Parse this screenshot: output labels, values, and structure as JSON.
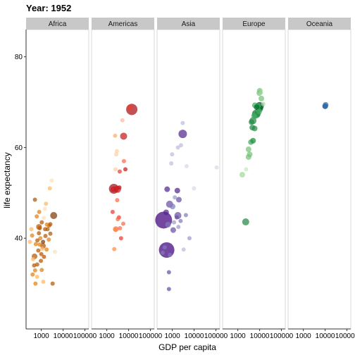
{
  "chart_data": {
    "type": "scatter",
    "title": "Year: 1952",
    "xlabel": "GDP per capita",
    "ylabel": "life expectancy",
    "x_scale": "log10",
    "xlim": [
      200,
      150000
    ],
    "ylim": [
      20,
      86
    ],
    "x_ticks": [
      1000,
      10000,
      100000
    ],
    "x_tick_labels": [
      "1000",
      "10000",
      "100000"
    ],
    "y_ticks": [
      40,
      60,
      80
    ],
    "y_tick_labels": [
      "40",
      "60",
      "80"
    ],
    "grid": false,
    "facets": [
      {
        "name": "Africa",
        "points": [
          {
            "x": 1940,
            "y": 42,
            "size": 3,
            "color": "#b35806"
          },
          {
            "x": 1050,
            "y": 43.5,
            "size": 3,
            "color": "#b35806"
          },
          {
            "x": 780,
            "y": 42.5,
            "size": 4,
            "color": "#b35806"
          },
          {
            "x": 1550,
            "y": 40.5,
            "size": 3,
            "color": "#b35806"
          },
          {
            "x": 620,
            "y": 44.8,
            "size": 3,
            "color": "#e08214"
          },
          {
            "x": 1200,
            "y": 38.3,
            "size": 4,
            "color": "#b35806"
          },
          {
            "x": 3700,
            "y": 45,
            "size": 5,
            "color": "#7f3b08"
          },
          {
            "x": 2300,
            "y": 42.8,
            "size": 3,
            "color": "#b35806"
          },
          {
            "x": 900,
            "y": 40,
            "size": 3,
            "color": "#e08214"
          },
          {
            "x": 1330,
            "y": 35.9,
            "size": 3,
            "color": "#b35806"
          },
          {
            "x": 1750,
            "y": 37.5,
            "size": 3,
            "color": "#e08214"
          },
          {
            "x": 650,
            "y": 34.2,
            "size": 3,
            "color": "#b35806"
          },
          {
            "x": 1050,
            "y": 33,
            "size": 3,
            "color": "#e08214"
          },
          {
            "x": 470,
            "y": 34,
            "size": 3,
            "color": "#b35806"
          },
          {
            "x": 490,
            "y": 36,
            "size": 4,
            "color": "#b35806"
          },
          {
            "x": 780,
            "y": 41.1,
            "size": 3,
            "color": "#b35806"
          },
          {
            "x": 560,
            "y": 38.7,
            "size": 3,
            "color": "#e08214"
          },
          {
            "x": 2600,
            "y": 43.1,
            "size": 3,
            "color": "#b35806"
          },
          {
            "x": 840,
            "y": 38.6,
            "size": 3,
            "color": "#e08214"
          },
          {
            "x": 420,
            "y": 35.4,
            "size": 3,
            "color": "#fdb863"
          },
          {
            "x": 1640,
            "y": 47.6,
            "size": 3,
            "color": "#fdb863"
          },
          {
            "x": 350,
            "y": 42,
            "size": 3,
            "color": "#fdb863"
          },
          {
            "x": 520,
            "y": 32.9,
            "size": 3,
            "color": "#e08214"
          },
          {
            "x": 640,
            "y": 31.5,
            "size": 3,
            "color": "#fdb863"
          },
          {
            "x": 540,
            "y": 30,
            "size": 3,
            "color": "#e08214"
          },
          {
            "x": 1230,
            "y": 30.4,
            "size": 3,
            "color": "#fdb863"
          },
          {
            "x": 2450,
            "y": 51,
            "size": 3,
            "color": "#fdb863"
          },
          {
            "x": 3000,
            "y": 52.7,
            "size": 3,
            "color": "#fee0b6"
          },
          {
            "x": 4200,
            "y": 37,
            "size": 3,
            "color": "#fee0b6"
          },
          {
            "x": 3300,
            "y": 30,
            "size": 3,
            "color": "#b35806"
          },
          {
            "x": 1450,
            "y": 46.5,
            "size": 3,
            "color": "#fee0b6"
          },
          {
            "x": 510,
            "y": 48.5,
            "size": 3,
            "color": "#b35806"
          },
          {
            "x": 300,
            "y": 39.2,
            "size": 3,
            "color": "#fdb863"
          },
          {
            "x": 800,
            "y": 45.8,
            "size": 3,
            "color": "#e08214"
          },
          {
            "x": 1000,
            "y": 36.5,
            "size": 3,
            "color": "#b35806"
          },
          {
            "x": 2200,
            "y": 39.7,
            "size": 3,
            "color": "#e08214"
          },
          {
            "x": 1100,
            "y": 37.7,
            "size": 3,
            "color": "#fdb863"
          },
          {
            "x": 1300,
            "y": 44.5,
            "size": 3,
            "color": "#fee0b6"
          },
          {
            "x": 730,
            "y": 37.3,
            "size": 3,
            "color": "#b35806"
          },
          {
            "x": 380,
            "y": 40.6,
            "size": 3,
            "color": "#e08214"
          },
          {
            "x": 1500,
            "y": 42,
            "size": 3,
            "color": "#b35806"
          },
          {
            "x": 850,
            "y": 42.2,
            "size": 3,
            "color": "#b35806"
          },
          {
            "x": 1200,
            "y": 39.2,
            "size": 3,
            "color": "#7f3b08"
          },
          {
            "x": 660,
            "y": 39.5,
            "size": 3,
            "color": "#b35806"
          },
          {
            "x": 1800,
            "y": 43,
            "size": 3,
            "color": "#e08214"
          },
          {
            "x": 400,
            "y": 32,
            "size": 3,
            "color": "#e08214"
          },
          {
            "x": 960,
            "y": 35,
            "size": 3,
            "color": "#b35806"
          },
          {
            "x": 2600,
            "y": 41,
            "size": 3,
            "color": "#b35806"
          }
        ]
      },
      {
        "name": "Americas",
        "points": [
          {
            "x": 13990,
            "y": 68.4,
            "size": 8,
            "color": "#a50f15"
          },
          {
            "x": 11370,
            "y": 68.8,
            "size": 4,
            "color": "#ef3b2c"
          },
          {
            "x": 5900,
            "y": 62.5,
            "size": 5,
            "color": "#cb181d"
          },
          {
            "x": 2100,
            "y": 50.9,
            "size": 7,
            "color": "#a50f15"
          },
          {
            "x": 3100,
            "y": 50.8,
            "size": 5,
            "color": "#cb181d"
          },
          {
            "x": 2000,
            "y": 50.8,
            "size": 4,
            "color": "#cb181d"
          },
          {
            "x": 3900,
            "y": 54.7,
            "size": 3,
            "color": "#ef3b2c"
          },
          {
            "x": 7100,
            "y": 55.2,
            "size": 3,
            "color": "#cb181d"
          },
          {
            "x": 6100,
            "y": 57,
            "size": 3,
            "color": "#fb6a4a"
          },
          {
            "x": 5200,
            "y": 66,
            "size": 3,
            "color": "#fcbba1"
          },
          {
            "x": 2400,
            "y": 62.6,
            "size": 3,
            "color": "#fdae6b"
          },
          {
            "x": 2700,
            "y": 58.5,
            "size": 3,
            "color": "#fdd0a2"
          },
          {
            "x": 2900,
            "y": 59.2,
            "size": 3,
            "color": "#fdd0a2"
          },
          {
            "x": 2500,
            "y": 55.2,
            "size": 3,
            "color": "#fdd0a2"
          },
          {
            "x": 3000,
            "y": 48.4,
            "size": 3,
            "color": "#fb6a4a"
          },
          {
            "x": 5700,
            "y": 43.2,
            "size": 3,
            "color": "#fb6a4a"
          },
          {
            "x": 1850,
            "y": 45.8,
            "size": 3,
            "color": "#ef3b2c"
          },
          {
            "x": 3600,
            "y": 44.6,
            "size": 3,
            "color": "#ef3b2c"
          },
          {
            "x": 4000,
            "y": 42.2,
            "size": 3,
            "color": "#fb6a4a"
          },
          {
            "x": 2600,
            "y": 42,
            "size": 4,
            "color": "#fb6a4a"
          },
          {
            "x": 2400,
            "y": 41.9,
            "size": 3,
            "color": "#fd8d3c"
          },
          {
            "x": 2200,
            "y": 37.6,
            "size": 3,
            "color": "#fd8d3c"
          },
          {
            "x": 4500,
            "y": 40,
            "size": 3,
            "color": "#ef3b2c"
          },
          {
            "x": 3200,
            "y": 44.2,
            "size": 3,
            "color": "#fb6a4a"
          },
          {
            "x": 3800,
            "y": 51.2,
            "size": 3,
            "color": "#cb181d"
          }
        ]
      },
      {
        "name": "Asia",
        "points": [
          {
            "x": 400,
            "y": 44,
            "size": 12,
            "color": "#3f007d"
          },
          {
            "x": 550,
            "y": 37.4,
            "size": 11,
            "color": "#3f007d"
          },
          {
            "x": 580,
            "y": 50.8,
            "size": 4,
            "color": "#54278f"
          },
          {
            "x": 3000,
            "y": 63,
            "size": 6,
            "color": "#54278f"
          },
          {
            "x": 750,
            "y": 47.5,
            "size": 5,
            "color": "#6a51a3"
          },
          {
            "x": 1800,
            "y": 45,
            "size": 5,
            "color": "#6a51a3"
          },
          {
            "x": 1030,
            "y": 47,
            "size": 4,
            "color": "#807dba"
          },
          {
            "x": 2000,
            "y": 48.5,
            "size": 4,
            "color": "#6a51a3"
          },
          {
            "x": 640,
            "y": 43,
            "size": 4,
            "color": "#807dba"
          },
          {
            "x": 780,
            "y": 36.3,
            "size": 3,
            "color": "#807dba"
          },
          {
            "x": 4200,
            "y": 45.1,
            "size": 3,
            "color": "#807dba"
          },
          {
            "x": 1300,
            "y": 49,
            "size": 3,
            "color": "#9e9ac8"
          },
          {
            "x": 1100,
            "y": 41.8,
            "size": 4,
            "color": "#6a51a3"
          },
          {
            "x": 1700,
            "y": 50.5,
            "size": 4,
            "color": "#54278f"
          },
          {
            "x": 6100,
            "y": 40,
            "size": 3,
            "color": "#9e9ac8"
          },
          {
            "x": 700,
            "y": 32.5,
            "size": 3,
            "color": "#6a51a3"
          },
          {
            "x": 700,
            "y": 28.8,
            "size": 3,
            "color": "#6a51a3"
          },
          {
            "x": 360,
            "y": 36.8,
            "size": 3,
            "color": "#807dba"
          },
          {
            "x": 1900,
            "y": 42.5,
            "size": 3,
            "color": "#9e9ac8"
          },
          {
            "x": 3000,
            "y": 65.4,
            "size": 3,
            "color": "#bcbddc"
          },
          {
            "x": 2500,
            "y": 60.5,
            "size": 3,
            "color": "#bcbddc"
          },
          {
            "x": 1800,
            "y": 60,
            "size": 3,
            "color": "#bcbddc"
          },
          {
            "x": 980,
            "y": 58.5,
            "size": 3,
            "color": "#bcbddc"
          },
          {
            "x": 900,
            "y": 56.5,
            "size": 3,
            "color": "#bcbddc"
          },
          {
            "x": 4500,
            "y": 55.9,
            "size": 3,
            "color": "#dadaeb"
          },
          {
            "x": 108000,
            "y": 55.6,
            "size": 3,
            "color": "#dadaeb"
          },
          {
            "x": 9900,
            "y": 51,
            "size": 3,
            "color": "#dadaeb"
          },
          {
            "x": 450,
            "y": 38,
            "size": 3,
            "color": "#807dba"
          },
          {
            "x": 1200,
            "y": 43.5,
            "size": 3,
            "color": "#9e9ac8"
          },
          {
            "x": 3300,
            "y": 37.5,
            "size": 3,
            "color": "#bcbddc"
          },
          {
            "x": 2400,
            "y": 43.8,
            "size": 3,
            "color": "#807dba"
          },
          {
            "x": 1600,
            "y": 44.6,
            "size": 3,
            "color": "#6a51a3"
          },
          {
            "x": 520,
            "y": 45.7,
            "size": 4,
            "color": "#54278f"
          }
        ]
      },
      {
        "name": "Europe",
        "points": [
          {
            "x": 9870,
            "y": 69.1,
            "size": 6,
            "color": "#00441b"
          },
          {
            "x": 7030,
            "y": 67.4,
            "size": 6,
            "color": "#006d2c"
          },
          {
            "x": 9980,
            "y": 68.6,
            "size": 5,
            "color": "#006d2c"
          },
          {
            "x": 4930,
            "y": 65.9,
            "size": 5,
            "color": "#238b45"
          },
          {
            "x": 4250,
            "y": 65.6,
            "size": 4,
            "color": "#238b45"
          },
          {
            "x": 8340,
            "y": 68.2,
            "size": 4,
            "color": "#41ab5d"
          },
          {
            "x": 9690,
            "y": 72,
            "size": 4,
            "color": "#74c476"
          },
          {
            "x": 10100,
            "y": 72.5,
            "size": 4,
            "color": "#74c476"
          },
          {
            "x": 12000,
            "y": 70.8,
            "size": 4,
            "color": "#74c476"
          },
          {
            "x": 14700,
            "y": 69.6,
            "size": 3,
            "color": "#a1d99b"
          },
          {
            "x": 8500,
            "y": 69.2,
            "size": 4,
            "color": "#41ab5d"
          },
          {
            "x": 6100,
            "y": 69.3,
            "size": 4,
            "color": "#41ab5d"
          },
          {
            "x": 5900,
            "y": 64.2,
            "size": 4,
            "color": "#238b45"
          },
          {
            "x": 6200,
            "y": 66.9,
            "size": 4,
            "color": "#41ab5d"
          },
          {
            "x": 4600,
            "y": 64.4,
            "size": 4,
            "color": "#238b45"
          },
          {
            "x": 4000,
            "y": 61.2,
            "size": 4,
            "color": "#41ab5d"
          },
          {
            "x": 5000,
            "y": 61.5,
            "size": 4,
            "color": "#238b45"
          },
          {
            "x": 3100,
            "y": 59.6,
            "size": 4,
            "color": "#74c476"
          },
          {
            "x": 3500,
            "y": 58.5,
            "size": 4,
            "color": "#74c476"
          },
          {
            "x": 3100,
            "y": 57.9,
            "size": 4,
            "color": "#74c476"
          },
          {
            "x": 2400,
            "y": 55.2,
            "size": 3,
            "color": "#c7e9c0"
          },
          {
            "x": 1600,
            "y": 54,
            "size": 4,
            "color": "#a1d99b"
          },
          {
            "x": 2300,
            "y": 43.6,
            "size": 5,
            "color": "#238b45"
          },
          {
            "x": 8000,
            "y": 67.5,
            "size": 4,
            "color": "#238b45"
          },
          {
            "x": 11500,
            "y": 72.1,
            "size": 3,
            "color": "#a1d99b"
          },
          {
            "x": 5600,
            "y": 67,
            "size": 4,
            "color": "#41ab5d"
          },
          {
            "x": 7300,
            "y": 68.9,
            "size": 4,
            "color": "#006d2c"
          },
          {
            "x": 9500,
            "y": 67.9,
            "size": 4,
            "color": "#41ab5d"
          }
        ]
      },
      {
        "name": "Oceania",
        "points": [
          {
            "x": 10040,
            "y": 69.1,
            "size": 4,
            "color": "#08306b"
          },
          {
            "x": 10560,
            "y": 69.4,
            "size": 4,
            "color": "#2171b5"
          }
        ]
      }
    ]
  }
}
